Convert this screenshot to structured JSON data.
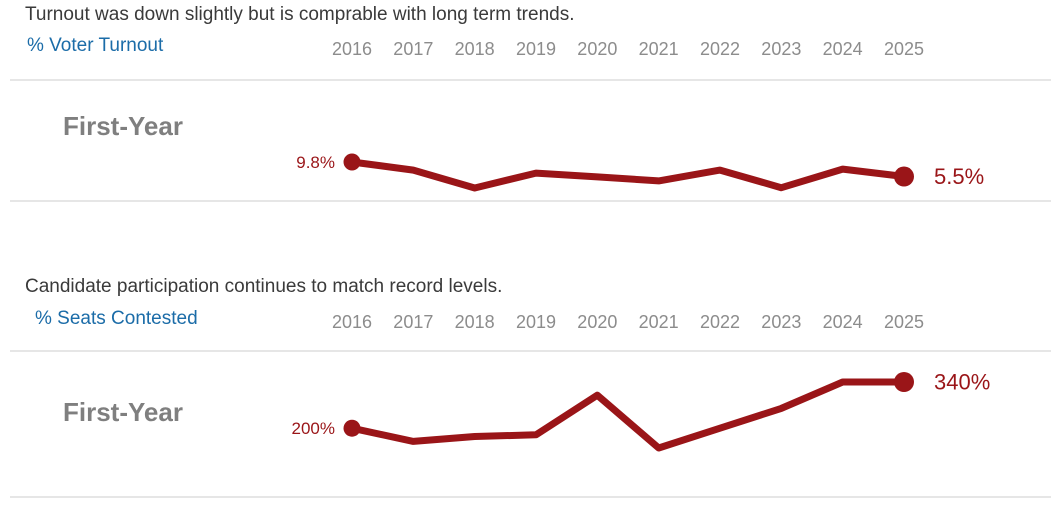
{
  "colors": {
    "line": "#9a1518",
    "metric_label": "#1b6ca8",
    "title_text": "#3a3a3a",
    "year_text": "#8c8c8c",
    "row_label_text": "#7f7f7f",
    "divider": "#e6e6e6",
    "background": "#ffffff"
  },
  "chart_data": [
    {
      "type": "line",
      "title": "Turnout was down slightly but is comprable with long term trends.",
      "metric_label": "% Voter Turnout",
      "row_label": "First-Year",
      "x": [
        "2016",
        "2017",
        "2018",
        "2019",
        "2020",
        "2021",
        "2022",
        "2023",
        "2024",
        "2025"
      ],
      "values": [
        9.8,
        7.4,
        2.1,
        6.5,
        5.4,
        4.2,
        7.4,
        2.2,
        7.7,
        5.5
      ],
      "start_point_label": "9.8%",
      "end_point_label": "5.5%",
      "unit": "%",
      "labeled_points": {
        "2016": "9.8%",
        "2025": "5.5%"
      },
      "note": "Only first and last points are labeled; intermediate values estimated from line position.",
      "grid": false,
      "legend_position": "none",
      "line_color": "#9a1518"
    },
    {
      "type": "line",
      "title": "Candidate participation continues to match record levels.",
      "metric_label": "% Seats Contested",
      "row_label": "First-Year",
      "x": [
        "2016",
        "2017",
        "2018",
        "2019",
        "2020",
        "2021",
        "2022",
        "2023",
        "2024",
        "2025"
      ],
      "values": [
        200,
        160,
        175,
        180,
        300,
        140,
        200,
        260,
        340,
        340
      ],
      "start_point_label": "200%",
      "end_point_label": "340%",
      "unit": "%",
      "labeled_points": {
        "2016": "200%",
        "2025": "340%"
      },
      "note": "Only first and last points are labeled; intermediate values estimated from line position.",
      "grid": false,
      "legend_position": "none",
      "line_color": "#9a1518"
    }
  ]
}
